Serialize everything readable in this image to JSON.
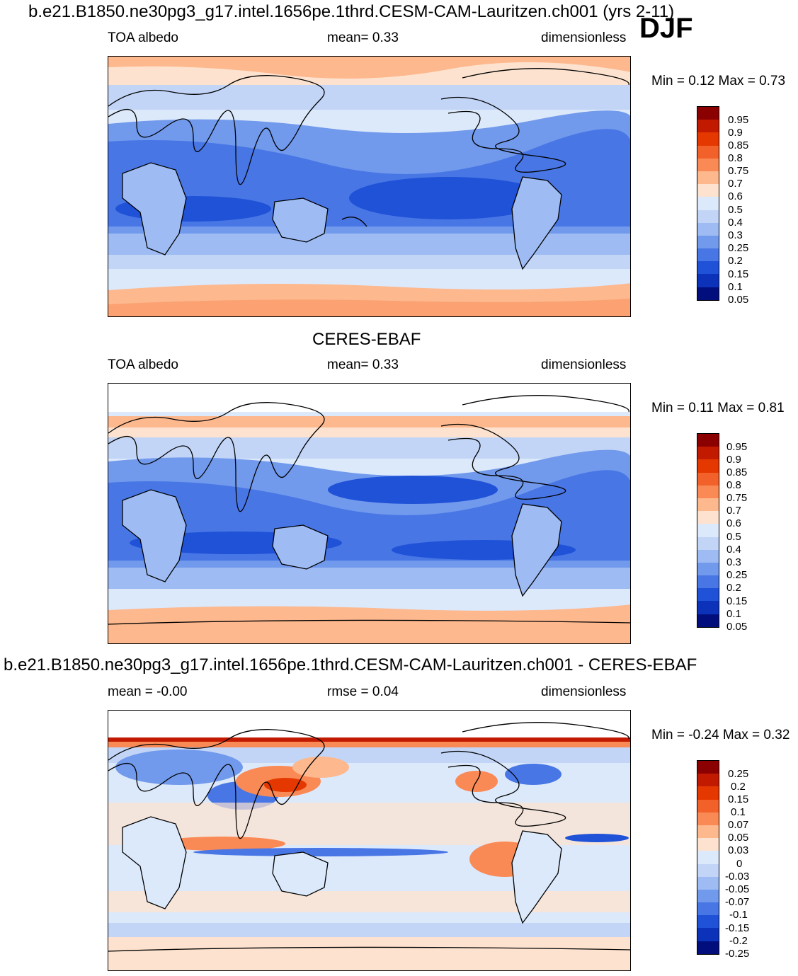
{
  "season": "DJF",
  "panels": [
    {
      "title": "b.e21.B1850.ne30pg3_g17.intel.1656pe.1thrd.CESM-CAM-Lauritzen.ch001 (yrs 2-11)",
      "left_label": "TOA albedo",
      "center_label": "mean=   0.33",
      "right_label": "dimensionless",
      "minmax": "Min =   0.12 Max =   0.73"
    },
    {
      "title": "CERES-EBAF",
      "left_label": "TOA albedo",
      "center_label": "mean=   0.33",
      "right_label": "dimensionless",
      "minmax": "Min =   0.11 Max =   0.81"
    },
    {
      "title": "b.e21.B1850.ne30pg3_g17.intel.1656pe.1thrd.CESM-CAM-Lauritzen.ch001 - CERES-EBAF",
      "left_label": "mean =  -0.00",
      "center_label": "rmse =   0.04",
      "right_label": "dimensionless",
      "minmax": "Min =  -0.24 Max =   0.32"
    }
  ],
  "colorbar_levels": [
    "0.95",
    "0.9",
    "0.85",
    "0.8",
    "0.75",
    "0.7",
    "0.6",
    "0.5",
    "0.4",
    "0.3",
    "0.25",
    "0.2",
    "0.15",
    "0.1",
    "0.05"
  ],
  "diff_colorbar_levels": [
    "0.25",
    "0.2",
    "0.15",
    "0.1",
    "0.07",
    "0.05",
    "0.03",
    "0",
    "-0.03",
    "-0.05",
    "-0.07",
    "-0.1",
    "-0.15",
    "-0.2",
    "-0.25"
  ],
  "colorbar_colors": [
    "#8b0000",
    "#c11a00",
    "#e53800",
    "#f3612b",
    "#fa8a55",
    "#fdb88e",
    "#fde3cf",
    "#dce9fb",
    "#c2d5f7",
    "#9ebcf3",
    "#7199ec",
    "#4876e5",
    "#2052d8",
    "#0c32b9",
    "#020e7c"
  ]
}
